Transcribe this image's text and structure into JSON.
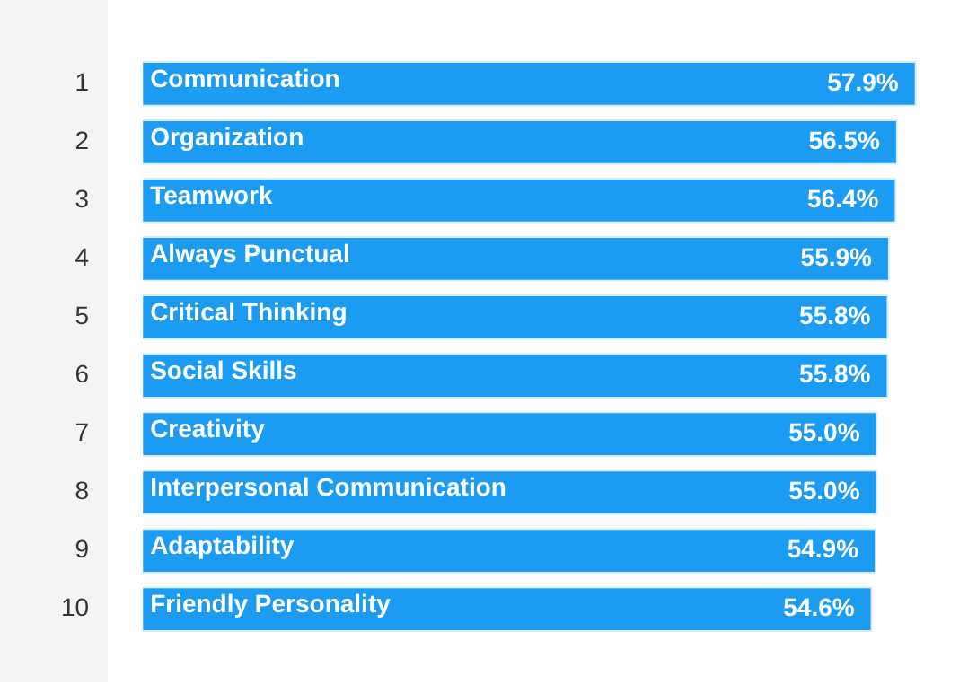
{
  "chart_data": {
    "type": "bar",
    "orientation": "horizontal",
    "categories": [
      "1",
      "2",
      "3",
      "4",
      "5",
      "6",
      "7",
      "8",
      "9",
      "10"
    ],
    "values": [
      57.9,
      56.5,
      56.4,
      55.9,
      55.8,
      55.8,
      55.0,
      55.0,
      54.9,
      54.6
    ],
    "color": "#1b9cf2",
    "value_labels": [
      "57.9%",
      "56.5%",
      "56.4%",
      "55.9%",
      "55.8%",
      "55.8%",
      "55.0%",
      "55.0%",
      "54.9%",
      "54.6%"
    ],
    "annotations": [
      {
        "text": "Communication",
        "y": "1"
      },
      {
        "text": "Organization",
        "y": "2"
      },
      {
        "text": "Teamwork",
        "y": "3"
      },
      {
        "text": "Always Punctual",
        "y": "4"
      },
      {
        "text": "Critical Thinking",
        "y": "5"
      },
      {
        "text": "Social Skills",
        "y": "6"
      },
      {
        "text": "Creativity",
        "y": "7"
      },
      {
        "text": "Interpersonal Communication",
        "y": "8"
      },
      {
        "text": "Adaptability",
        "y": "9"
      },
      {
        "text": "Friendly Personality",
        "y": "10"
      }
    ],
    "legend": false,
    "grid": false
  }
}
